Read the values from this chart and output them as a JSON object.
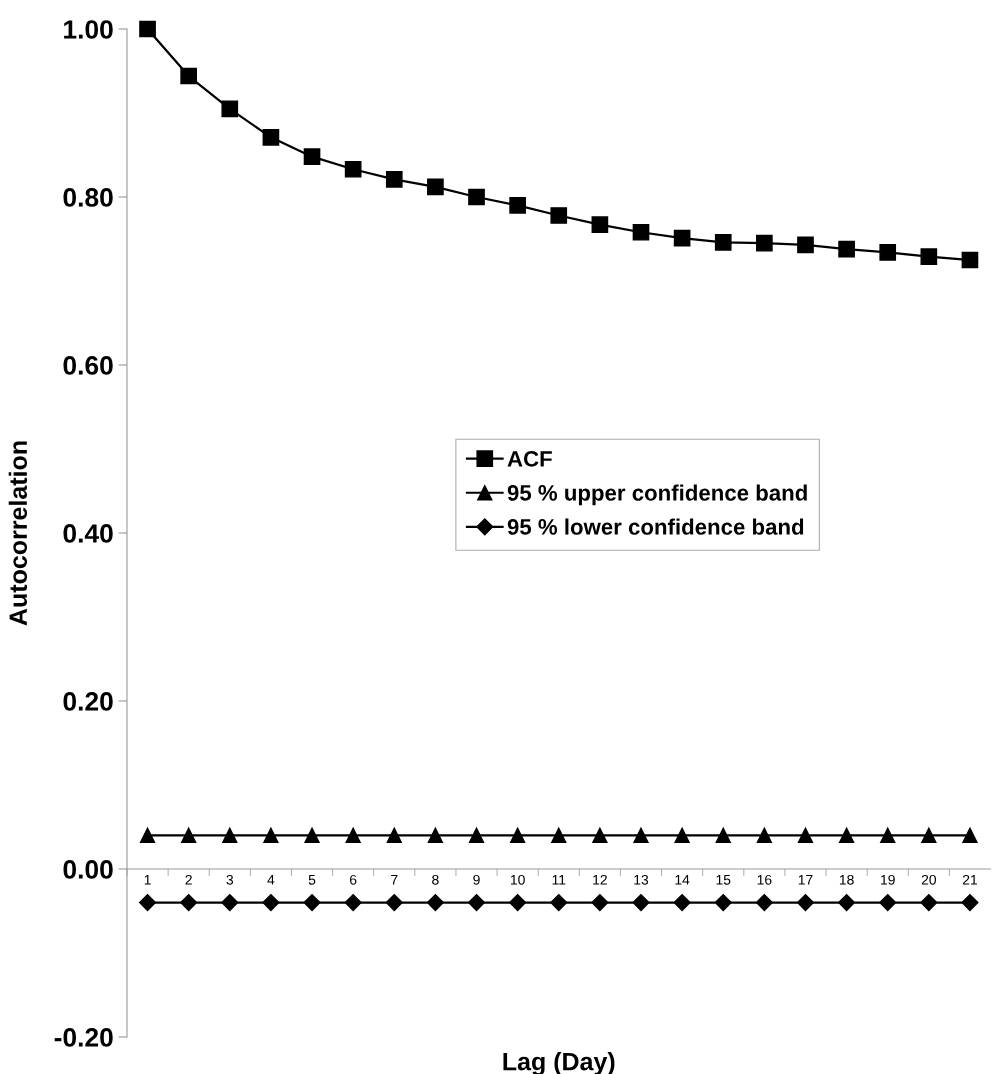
{
  "chart_data": {
    "type": "line",
    "xlabel": "Lag (Day)",
    "ylabel": "Autocorrelation",
    "categories": [
      "1",
      "2",
      "3",
      "4",
      "5",
      "6",
      "7",
      "8",
      "9",
      "10",
      "11",
      "12",
      "13",
      "14",
      "15",
      "16",
      "17",
      "18",
      "19",
      "20",
      "21"
    ],
    "series": [
      {
        "name": "ACF",
        "color": "#000000",
        "marker": "square",
        "values": [
          1.0,
          0.944,
          0.905,
          0.871,
          0.848,
          0.833,
          0.821,
          0.812,
          0.8,
          0.79,
          0.778,
          0.767,
          0.758,
          0.751,
          0.746,
          0.745,
          0.743,
          0.738,
          0.734,
          0.729,
          0.725
        ]
      },
      {
        "name": "95 % upper confidence band",
        "color": "#000000",
        "marker": "triangle",
        "values": [
          0.04,
          0.04,
          0.04,
          0.04,
          0.04,
          0.04,
          0.04,
          0.04,
          0.04,
          0.04,
          0.04,
          0.04,
          0.04,
          0.04,
          0.04,
          0.04,
          0.04,
          0.04,
          0.04,
          0.04,
          0.04
        ]
      },
      {
        "name": "95 % lower confidence band",
        "color": "#000000",
        "marker": "diamond",
        "values": [
          -0.04,
          -0.04,
          -0.04,
          -0.04,
          -0.04,
          -0.04,
          -0.04,
          -0.04,
          -0.04,
          -0.04,
          -0.04,
          -0.04,
          -0.04,
          -0.04,
          -0.04,
          -0.04,
          -0.04,
          -0.04,
          -0.04,
          -0.04,
          -0.04
        ]
      }
    ],
    "ylim": [
      -0.2,
      1.0
    ],
    "yticks": [
      {
        "value": -0.2,
        "label": "-0.20"
      },
      {
        "value": 0,
        "label": "0.00"
      },
      {
        "value": 0.2,
        "label": "0.20"
      },
      {
        "value": 0.4,
        "label": "0.40"
      },
      {
        "value": 0.6,
        "label": "0.60"
      },
      {
        "value": 0.8,
        "label": "0.80"
      },
      {
        "value": 1.0,
        "label": "1.00"
      }
    ],
    "grid": false,
    "legend": "right",
    "line_style": "solid"
  }
}
